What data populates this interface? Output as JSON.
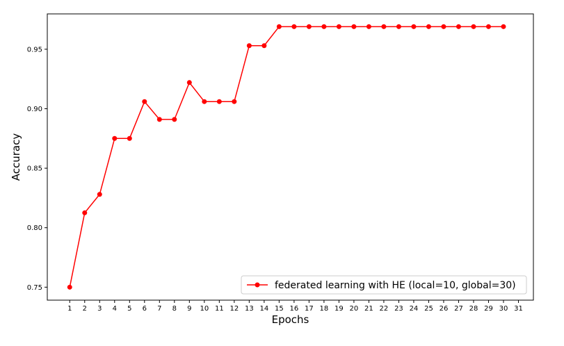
{
  "chart_data": {
    "type": "line",
    "title": "",
    "xlabel": "Epochs",
    "ylabel": "Accuracy",
    "x": [
      1,
      2,
      3,
      4,
      5,
      6,
      7,
      8,
      9,
      10,
      11,
      12,
      13,
      14,
      15,
      16,
      17,
      18,
      19,
      20,
      21,
      22,
      23,
      24,
      25,
      26,
      27,
      28,
      29,
      30
    ],
    "x_ticks": [
      1,
      2,
      3,
      4,
      5,
      6,
      7,
      8,
      9,
      10,
      11,
      12,
      13,
      14,
      15,
      16,
      17,
      18,
      19,
      20,
      21,
      22,
      23,
      24,
      25,
      26,
      27,
      28,
      29,
      30,
      31
    ],
    "y_ticks": [
      "0.75",
      "0.80",
      "0.85",
      "0.90",
      "0.95"
    ],
    "xlim": [
      -0.5,
      32
    ],
    "ylim": [
      0.7391,
      0.9797
    ],
    "grid": false,
    "legend_position": "lower-right",
    "series": [
      {
        "name": "federated learning with HE (local=10, global=30)",
        "color": "#ff0000",
        "marker": "circle",
        "values": [
          0.75,
          0.8125,
          0.828,
          0.875,
          0.875,
          0.906,
          0.891,
          0.891,
          0.922,
          0.906,
          0.906,
          0.906,
          0.953,
          0.953,
          0.969,
          0.969,
          0.969,
          0.969,
          0.969,
          0.969,
          0.969,
          0.969,
          0.969,
          0.969,
          0.969,
          0.969,
          0.969,
          0.969,
          0.969,
          0.969
        ]
      }
    ]
  }
}
